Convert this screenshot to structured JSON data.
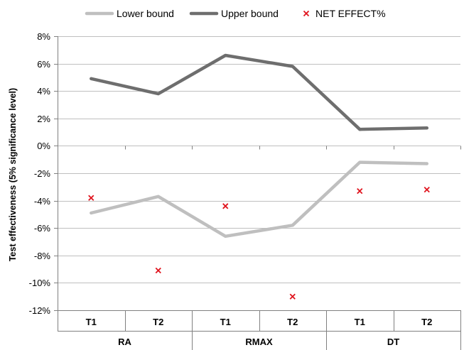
{
  "chart_data": {
    "type": "line",
    "title": "",
    "ylabel": "Test effectiveness (5% significance level)",
    "xlabel": "",
    "ylim": [
      -0.12,
      0.08
    ],
    "y_ticks": [
      0.08,
      0.06,
      0.04,
      0.02,
      0.0,
      -0.02,
      -0.04,
      -0.06,
      -0.08,
      -0.1,
      -0.12
    ],
    "y_tick_labels": [
      "8%",
      "6%",
      "4%",
      "2%",
      "0%",
      "-2%",
      "-4%",
      "-6%",
      "-8%",
      "-10%",
      "-12%"
    ],
    "categories": [
      "T1",
      "T2",
      "T1",
      "T2",
      "T1",
      "T2"
    ],
    "groups": [
      {
        "label": "RA",
        "span": 2
      },
      {
        "label": "RMAX",
        "span": 2
      },
      {
        "label": "DT",
        "span": 2
      }
    ],
    "grid": true,
    "legend_position": "top",
    "series": [
      {
        "name": "Lower bound",
        "kind": "line",
        "color": "#BFBFBF",
        "values": [
          -0.049,
          -0.037,
          -0.066,
          -0.058,
          -0.012,
          -0.013
        ]
      },
      {
        "name": "Upper bound",
        "kind": "line",
        "color": "#6E6E6E",
        "values": [
          0.049,
          0.038,
          0.066,
          0.058,
          0.012,
          0.013
        ]
      },
      {
        "name": "NET EFFECT%",
        "kind": "marker",
        "color": "#E0141E",
        "marker": "x",
        "values": [
          -0.038,
          -0.091,
          -0.044,
          -0.11,
          -0.033,
          -0.032
        ]
      }
    ]
  }
}
